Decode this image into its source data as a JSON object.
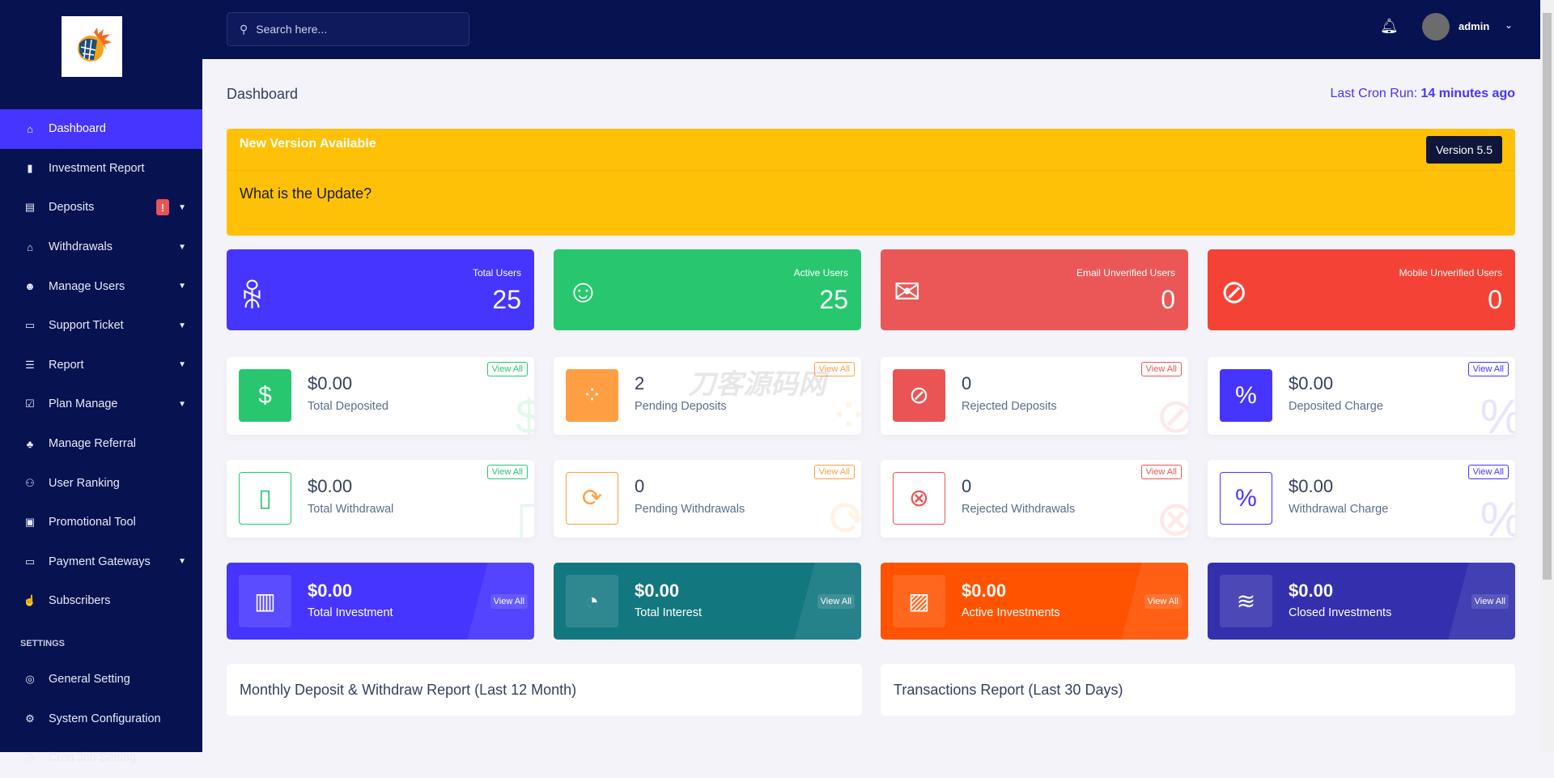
{
  "sidebar": {
    "items": [
      {
        "label": "Dashboard",
        "icon": "home-icon",
        "glyph": "⌂",
        "active": true
      },
      {
        "label": "Investment Report",
        "icon": "bar-chart-icon",
        "glyph": "▮"
      },
      {
        "label": "Deposits",
        "icon": "deposit-icon",
        "glyph": "▤",
        "badge": "!",
        "chevron": true
      },
      {
        "label": "Withdrawals",
        "icon": "bank-icon",
        "glyph": "⌂",
        "chevron": true
      },
      {
        "label": "Manage Users",
        "icon": "users-icon",
        "glyph": "☻",
        "chevron": true
      },
      {
        "label": "Support Ticket",
        "icon": "ticket-icon",
        "glyph": "▭",
        "chevron": true
      },
      {
        "label": "Report",
        "icon": "list-icon",
        "glyph": "☰",
        "chevron": true
      },
      {
        "label": "Plan Manage",
        "icon": "clipboard-check-icon",
        "glyph": "☑",
        "chevron": true
      },
      {
        "label": "Manage Referral",
        "icon": "tree-icon",
        "glyph": "♣"
      },
      {
        "label": "User Ranking",
        "icon": "medal-icon",
        "glyph": "⚇"
      },
      {
        "label": "Promotional Tool",
        "icon": "ad-icon",
        "glyph": "▣"
      },
      {
        "label": "Payment Gateways",
        "icon": "credit-card-icon",
        "glyph": "▭",
        "chevron": true
      },
      {
        "label": "Subscribers",
        "icon": "thumbs-up-icon",
        "glyph": "☝"
      }
    ],
    "settings_label": "SETTINGS",
    "settings_items": [
      {
        "label": "General Setting",
        "icon": "life-ring-icon",
        "glyph": "◎"
      },
      {
        "label": "System Configuration",
        "icon": "gear-icon",
        "glyph": "⚙"
      },
      {
        "label": "Cron Job Setting",
        "icon": "clock-icon",
        "glyph": "◷"
      }
    ]
  },
  "topbar": {
    "search_placeholder": "Search here...",
    "user": "admin"
  },
  "header": {
    "title": "Dashboard",
    "cron_label": "Last Cron Run:",
    "cron_value": "14 minutes ago"
  },
  "banner": {
    "title": "New Version Available",
    "question": "What is the Update?",
    "version": "Version 5.5"
  },
  "user_widgets": [
    {
      "label": "Total Users",
      "value": "25",
      "color": "#4634ff",
      "icon": "users-icon",
      "glyph": "ꆜ"
    },
    {
      "label": "Active Users",
      "value": "25",
      "color": "#28c76f",
      "icon": "user-check-icon",
      "glyph": "☺"
    },
    {
      "label": "Email Unverified Users",
      "value": "0",
      "color": "#eb5757",
      "icon": "envelope-icon",
      "glyph": "✉"
    },
    {
      "label": "Mobile Unverified Users",
      "value": "0",
      "color": "#f44336",
      "icon": "comment-slash-icon",
      "glyph": "⊘"
    }
  ],
  "deposit_widgets": [
    {
      "value": "$0.00",
      "label": "Total Deposited",
      "color": "#28c76f",
      "icon": "hand-dollar-icon",
      "glyph": "$",
      "filled": true
    },
    {
      "value": "2",
      "label": "Pending Deposits",
      "color": "#ff9f43",
      "icon": "spinner-icon",
      "glyph": "⁘",
      "filled": true
    },
    {
      "value": "0",
      "label": "Rejected Deposits",
      "color": "#ea5455",
      "icon": "ban-icon",
      "glyph": "⊘",
      "filled": true
    },
    {
      "value": "$0.00",
      "label": "Deposited Charge",
      "color": "#4634ff",
      "icon": "percent-icon",
      "glyph": "%",
      "filled": true
    }
  ],
  "withdraw_widgets": [
    {
      "value": "$0.00",
      "label": "Total Withdrawal",
      "color": "#28c76f",
      "icon": "rectangle-icon",
      "glyph": "▯"
    },
    {
      "value": "0",
      "label": "Pending Withdrawals",
      "color": "#ff9f43",
      "icon": "sync-icon",
      "glyph": "⟳"
    },
    {
      "value": "0",
      "label": "Rejected Withdrawals",
      "color": "#ea5455",
      "icon": "times-circle-icon",
      "glyph": "⊗"
    },
    {
      "value": "$0.00",
      "label": "Withdrawal Charge",
      "color": "#4634ff",
      "icon": "percent-icon",
      "glyph": "%"
    }
  ],
  "view_all": "View All",
  "investment_widgets": [
    {
      "value": "$0.00",
      "label": "Total Investment",
      "color": "#4634ff",
      "icon": "bar-chart-icon",
      "glyph": "▥"
    },
    {
      "value": "$0.00",
      "label": "Total Interest",
      "color": "#137780",
      "icon": "pie-chart-icon",
      "glyph": "◔"
    },
    {
      "value": "$0.00",
      "label": "Active Investments",
      "color": "#ff5300",
      "icon": "area-chart-icon",
      "glyph": "▨"
    },
    {
      "value": "$0.00",
      "label": "Closed Investments",
      "color": "#3430ad",
      "icon": "wave-icon",
      "glyph": "≋"
    }
  ],
  "charts": {
    "monthly_title": "Monthly Deposit & Withdraw Report (Last 12 Month)",
    "transactions_title": "Transactions Report (Last 30 Days)"
  },
  "watermark": "刀客源码网"
}
